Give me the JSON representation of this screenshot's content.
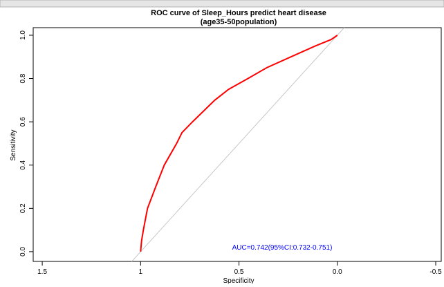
{
  "chart_data": {
    "type": "line",
    "title": "ROC curve of Sleep_Hours predict heart disease",
    "subtitle": "(age35-50population)",
    "x_label": "Specificity",
    "y_label": "Sensitivity",
    "annotation": "AUC=0.742(95%CI:0.732-0.751)",
    "annotation_color": "#0000ff",
    "xlim": [
      1.546,
      -0.528
    ],
    "ylim": [
      -0.045,
      1.035
    ],
    "xticks": [
      1.5,
      1.0,
      {
        "value": 0.5,
        "label": "0.5"
      },
      {
        "value": 0.0,
        "label": "0.0"
      },
      {
        "value": -0.5,
        "label": "-0.5"
      }
    ],
    "yticks": [
      {
        "value": 0.0,
        "label": "0.0"
      },
      0.2,
      0.4,
      0.6,
      0.8,
      {
        "value": 1.0,
        "label": "1.0"
      }
    ],
    "reference_line": {
      "color": "#c8c8c8",
      "x": [
        1.045,
        -0.035
      ],
      "y": [
        -0.045,
        1.035
      ]
    },
    "series": [
      {
        "name": "ROC",
        "color": "#ff0000",
        "x": [
          1.0,
          0.995,
          0.986,
          0.965,
          0.923,
          0.88,
          0.817,
          0.79,
          0.736,
          0.623,
          0.553,
          0.454,
          0.359,
          0.236,
          0.113,
          0.032,
          0.0
        ],
        "values": [
          0.0,
          0.05,
          0.1,
          0.2,
          0.3,
          0.4,
          0.5,
          0.55,
          0.6,
          0.7,
          0.75,
          0.8,
          0.85,
          0.9,
          0.95,
          0.98,
          1.0
        ]
      }
    ]
  }
}
